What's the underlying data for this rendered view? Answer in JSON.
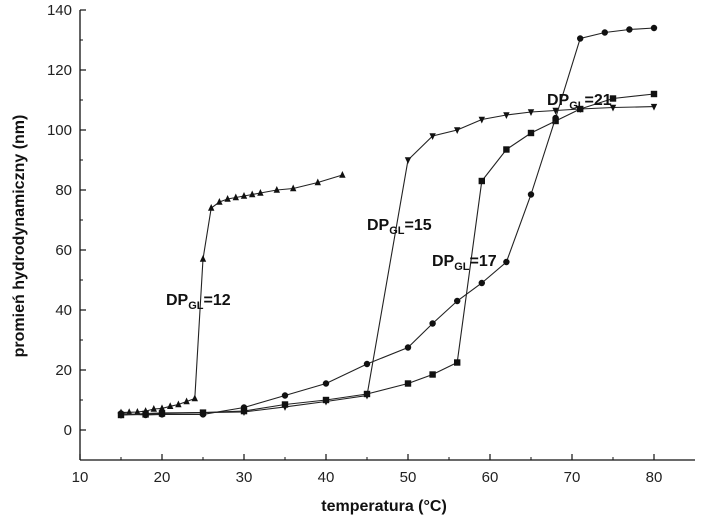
{
  "chart_data": {
    "type": "line",
    "xlabel": "temperatura (°C)",
    "ylabel": "promień hydrodynamiczny (nm)",
    "xlim": [
      10,
      85
    ],
    "ylim": [
      -10,
      140
    ],
    "xticks": [
      10,
      20,
      30,
      40,
      50,
      60,
      70,
      80
    ],
    "yticks": [
      0,
      20,
      40,
      60,
      80,
      100,
      120,
      140
    ],
    "grid": false,
    "series": [
      {
        "name": "DPGL=12",
        "label_main": "DP",
        "label_sub": "GL",
        "label_suffix": "=12",
        "marker": "triangle-up",
        "x": [
          15,
          16,
          17,
          18,
          19,
          20,
          21,
          22,
          23,
          24,
          25,
          26,
          27,
          28,
          29,
          30,
          31,
          32,
          34,
          36,
          39,
          42
        ],
        "y": [
          5.8,
          5.9,
          6.0,
          6.3,
          7.0,
          7.2,
          7.9,
          8.5,
          9.5,
          10.5,
          57,
          74,
          76,
          77,
          77.5,
          78,
          78.5,
          79,
          80,
          80.5,
          82.5,
          85
        ]
      },
      {
        "name": "DPGL=15",
        "label_main": "DP",
        "label_sub": "GL",
        "label_suffix": "=15",
        "marker": "triangle-down",
        "x": [
          15,
          18,
          20,
          25,
          30,
          35,
          40,
          45,
          50,
          53,
          56,
          59,
          62,
          65,
          68,
          71,
          75,
          80
        ],
        "y": [
          5.0,
          5.5,
          5.7,
          5.8,
          6.0,
          7.7,
          9.5,
          11.5,
          90,
          98,
          100,
          103.5,
          105,
          106,
          106.5,
          107,
          107.5,
          107.8
        ]
      },
      {
        "name": "DPGL=17",
        "label_main": "DP",
        "label_sub": "GL",
        "label_suffix": "=17",
        "marker": "square",
        "x": [
          15,
          18,
          20,
          25,
          30,
          35,
          40,
          45,
          50,
          53,
          56,
          59,
          62,
          65,
          68,
          71,
          75,
          80
        ],
        "y": [
          5.0,
          5.2,
          5.5,
          5.8,
          6.3,
          8.5,
          10.0,
          12.0,
          15.5,
          18.5,
          22.5,
          83,
          93.5,
          99,
          103,
          107,
          110.5,
          112
        ]
      },
      {
        "name": "DPGL=21",
        "label_main": "DP",
        "label_sub": "GL",
        "label_suffix": "=21",
        "marker": "circle",
        "x": [
          15,
          18,
          20,
          25,
          30,
          35,
          40,
          45,
          50,
          53,
          56,
          59,
          62,
          65,
          68,
          71,
          74,
          77,
          80
        ],
        "y": [
          5.5,
          5.0,
          5.2,
          5.2,
          7.5,
          11.5,
          15.5,
          22,
          27.5,
          35.5,
          43,
          49,
          56,
          78.5,
          104,
          130.5,
          132.5,
          133.5,
          134
        ]
      }
    ]
  }
}
